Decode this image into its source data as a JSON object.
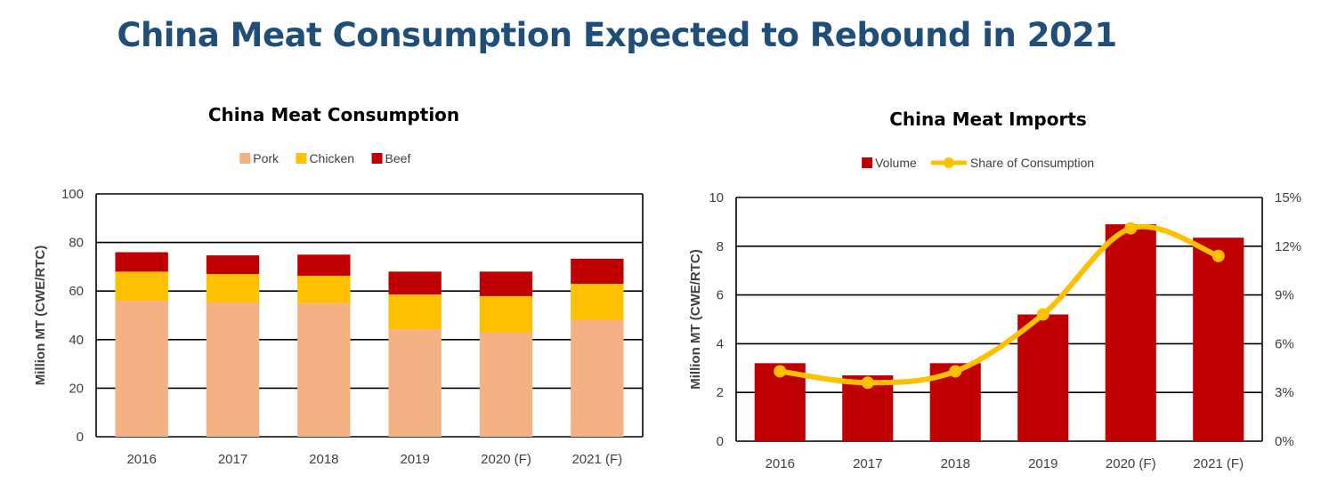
{
  "title": "China Meat Consumption Expected to Rebound in 2021",
  "chart_data": [
    {
      "type": "bar",
      "stacked": true,
      "title": "China Meat Consumption",
      "categories": [
        "2016",
        "2017",
        "2018",
        "2019",
        "2020 (F)",
        "2021 (F)"
      ],
      "series": [
        {
          "name": "Pork",
          "values": [
            56,
            55.3,
            55,
            44.3,
            42.9,
            48
          ],
          "color": "#f4b183"
        },
        {
          "name": "Chicken",
          "values": [
            12,
            11.7,
            11.3,
            14.3,
            15,
            15
          ],
          "color": "#ffc000"
        },
        {
          "name": "Beef",
          "values": [
            8,
            7.7,
            8.7,
            9.4,
            10.1,
            10.3
          ],
          "color": "#c00000"
        }
      ],
      "xlabel": "",
      "ylabel": "Million MT (CWE/RTC)",
      "ylim": [
        0,
        100
      ],
      "yticks": [
        "0",
        "20",
        "40",
        "60",
        "80",
        "100"
      ],
      "grid": true,
      "legend": "top-center"
    },
    {
      "type": "bar+line",
      "title": "China Meat Imports",
      "categories": [
        "2016",
        "2017",
        "2018",
        "2019",
        "2020 (F)",
        "2021 (F)"
      ],
      "series": [
        {
          "name": "Volume",
          "type": "bar",
          "axis": "left",
          "values": [
            3.2,
            2.7,
            3.2,
            5.2,
            8.9,
            8.35
          ],
          "color": "#c00000"
        },
        {
          "name": "Share of Consumption",
          "type": "line",
          "axis": "right",
          "values": [
            4.3,
            3.6,
            4.3,
            7.8,
            13.1,
            11.4
          ],
          "unit": "%",
          "color": "#ffc000"
        }
      ],
      "xlabel": "",
      "ylabel": "Million MT (CWE/RTC)",
      "ylim": [
        0,
        10
      ],
      "yticks": [
        "0",
        "2",
        "4",
        "6",
        "8",
        "10"
      ],
      "y2lim": [
        0,
        15
      ],
      "y2ticks": [
        "0%",
        "3%",
        "6%",
        "9%",
        "12%",
        "15%"
      ],
      "grid": true,
      "legend": "top-center"
    }
  ]
}
